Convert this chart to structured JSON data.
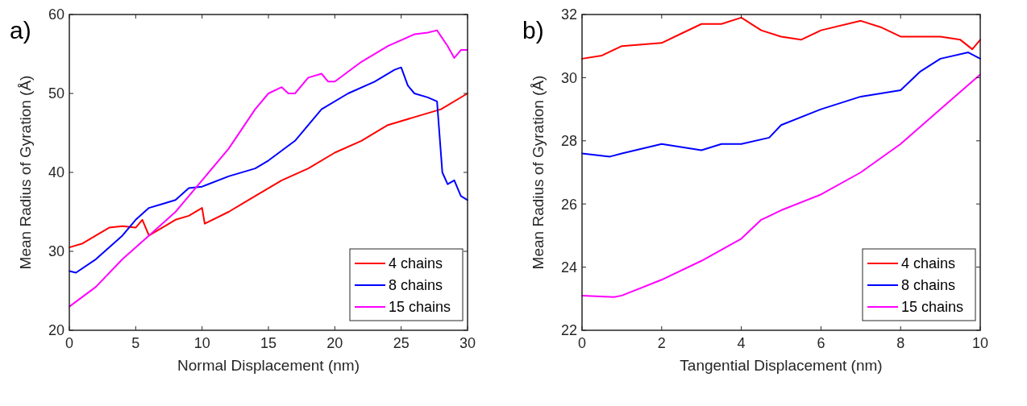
{
  "chart_data": [
    {
      "type": "line",
      "title": "a)",
      "xlabel": "Normal Displacement (nm)",
      "ylabel": "Mean Radius of Gyration (Å)",
      "xlim": [
        0,
        30
      ],
      "ylim": [
        20,
        60
      ],
      "xticks": [
        0,
        5,
        10,
        15,
        20,
        25,
        30
      ],
      "yticks": [
        20,
        30,
        40,
        50,
        60
      ],
      "legend": "bottom right",
      "grid": false,
      "series": [
        {
          "name": "4 chains",
          "color": "#ff0000",
          "x": [
            0,
            1,
            2,
            3,
            4,
            5,
            5.5,
            6,
            7,
            8,
            9,
            10,
            10.2,
            12,
            14,
            16,
            18,
            20,
            22,
            24,
            26,
            28,
            30
          ],
          "values": [
            30.5,
            31,
            32,
            33,
            33.2,
            33,
            34,
            32,
            33,
            34,
            34.5,
            35.5,
            33.5,
            35,
            37,
            39,
            40.5,
            42.5,
            44,
            46,
            47,
            48,
            50
          ]
        },
        {
          "name": "8 chains",
          "color": "#0000ff",
          "x": [
            0,
            0.5,
            2,
            4,
            5,
            6,
            7,
            8,
            9,
            10,
            12,
            14,
            15,
            17,
            19,
            21,
            23,
            24.5,
            25,
            25.5,
            26,
            27,
            27.7,
            28.1,
            28.5,
            29,
            29.5,
            30
          ],
          "values": [
            27.5,
            27.3,
            29,
            32,
            34,
            35.5,
            36,
            36.5,
            38,
            38.2,
            39.5,
            40.5,
            41.5,
            44,
            48,
            50,
            51.5,
            53,
            53.3,
            51,
            50,
            49.5,
            49,
            40,
            38.5,
            39,
            37,
            36.5
          ]
        },
        {
          "name": "15 chains",
          "color": "#ff00ff",
          "x": [
            0,
            2,
            4,
            6,
            8,
            10,
            12,
            14,
            15,
            16,
            16.5,
            17,
            18,
            19,
            19.5,
            20,
            22,
            24,
            26,
            27,
            27.7,
            28.5,
            29,
            29.5,
            30
          ],
          "values": [
            23,
            25.5,
            29,
            32,
            35,
            39,
            43,
            48,
            50,
            50.8,
            50,
            50,
            52,
            52.5,
            51.5,
            51.5,
            54,
            56,
            57.5,
            57.7,
            58,
            56,
            54.5,
            55.5,
            55.5
          ]
        }
      ]
    },
    {
      "type": "line",
      "title": "b)",
      "xlabel": "Tangential Displacement (nm)",
      "ylabel": "Mean Radius of Gyration (Å)",
      "xlim": [
        0,
        10
      ],
      "ylim": [
        22,
        32
      ],
      "xticks": [
        0,
        2,
        4,
        6,
        8,
        10
      ],
      "yticks": [
        22,
        24,
        26,
        28,
        30,
        32
      ],
      "legend": "bottom right",
      "grid": false,
      "series": [
        {
          "name": "4 chains",
          "color": "#ff0000",
          "x": [
            0,
            0.5,
            1,
            2,
            2.5,
            3,
            3.5,
            4,
            4.5,
            5,
            5.5,
            6,
            7,
            7.5,
            8,
            9,
            9.5,
            9.8,
            10
          ],
          "values": [
            30.6,
            30.7,
            31,
            31.1,
            31.4,
            31.7,
            31.7,
            31.9,
            31.5,
            31.3,
            31.2,
            31.5,
            31.8,
            31.6,
            31.3,
            31.3,
            31.2,
            30.9,
            31.2
          ]
        },
        {
          "name": "8 chains",
          "color": "#0000ff",
          "x": [
            0,
            0.7,
            1,
            2,
            3,
            3.5,
            4,
            4.7,
            5,
            6,
            7,
            8,
            8.5,
            9,
            9.7,
            10
          ],
          "values": [
            27.6,
            27.5,
            27.6,
            27.9,
            27.7,
            27.9,
            27.9,
            28.1,
            28.5,
            29,
            29.4,
            29.6,
            30.2,
            30.6,
            30.8,
            30.6
          ]
        },
        {
          "name": "15 chains",
          "color": "#ff00ff",
          "x": [
            0,
            0.8,
            1,
            2,
            3,
            4,
            4.5,
            5,
            6,
            7,
            8,
            9,
            10
          ],
          "values": [
            23.1,
            23.05,
            23.1,
            23.6,
            24.2,
            24.9,
            25.5,
            25.8,
            26.3,
            27,
            27.9,
            29,
            30.1
          ]
        }
      ]
    }
  ]
}
